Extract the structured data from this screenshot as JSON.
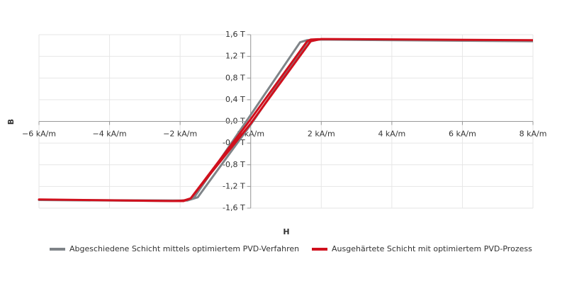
{
  "chart_data": {
    "type": "line",
    "x_label": "H",
    "y_label": "B",
    "xlim": [
      -6,
      8
    ],
    "ylim": [
      -1.6,
      1.6
    ],
    "xticks": [
      {
        "value": -6,
        "label": "−6 kA/m"
      },
      {
        "value": -4,
        "label": "−4 kA/m"
      },
      {
        "value": -2,
        "label": "−2 kA/m"
      },
      {
        "value": 0,
        "label": "0 kA/m"
      },
      {
        "value": 2,
        "label": "2 kA/m"
      },
      {
        "value": 4,
        "label": "4 kA/m"
      },
      {
        "value": 6,
        "label": "6 kA/m"
      },
      {
        "value": 8,
        "label": "8 kA/m"
      }
    ],
    "yticks": [
      {
        "value": -1.6,
        "label": "-1,6 T"
      },
      {
        "value": -1.2,
        "label": "-1,2 T"
      },
      {
        "value": -0.8,
        "label": "-0,8 T"
      },
      {
        "value": -0.4,
        "label": "-0,4 T"
      },
      {
        "value": 0,
        "label": "0,0 T"
      },
      {
        "value": 0.4,
        "label": "0,4 T"
      },
      {
        "value": 0.8,
        "label": "0,8 T"
      },
      {
        "value": 1.2,
        "label": "1,2 T"
      },
      {
        "value": 1.6,
        "label": "1,6 T"
      }
    ],
    "grid": true,
    "series": [
      {
        "name": "Abgeschiedene Schicht mittels optimiertem PVD-Verfahren",
        "color": "#7f8488",
        "x": [
          8,
          2,
          1.6,
          1.4,
          0,
          -1.6,
          -1.8,
          -2.1,
          -6,
          -1.8,
          -1.5,
          0,
          1.6,
          1.9,
          8
        ],
        "values": [
          1.48,
          1.51,
          1.5,
          1.46,
          0.12,
          -1.4,
          -1.45,
          -1.47,
          -1.45,
          -1.46,
          -1.4,
          -0.06,
          1.46,
          1.51,
          1.48
        ]
      },
      {
        "name": "Ausgehärtete Schicht mit optimiertem PVD-Prozess",
        "color": "#d0101d",
        "x": [
          8,
          2,
          1.7,
          1.6,
          0,
          -1.7,
          -1.9,
          -2.2,
          -6,
          -1.9,
          -1.7,
          0,
          1.7,
          2,
          8
        ],
        "values": [
          1.5,
          1.52,
          1.51,
          1.48,
          0.04,
          -1.42,
          -1.46,
          -1.47,
          -1.44,
          -1.47,
          -1.42,
          -0.04,
          1.48,
          1.52,
          1.5
        ]
      }
    ]
  }
}
